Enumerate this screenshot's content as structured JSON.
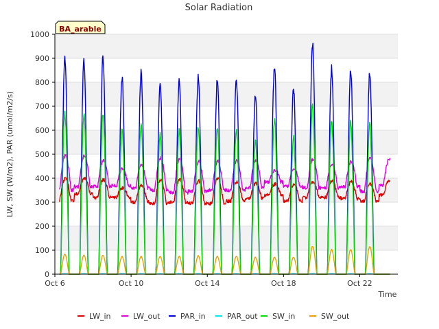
{
  "chart_data": {
    "type": "line",
    "title": "Solar Radiation",
    "xlabel": "Time",
    "ylabel": "LW, SW (W/m2), PAR (umol/m2/s)",
    "badge": "BA_arable",
    "ylim": [
      0,
      1000
    ],
    "yticks": [
      0,
      100,
      200,
      300,
      400,
      500,
      600,
      700,
      800,
      900,
      1000
    ],
    "xlim_days": [
      6,
      24
    ],
    "xticks": [
      {
        "day": 6,
        "label": "Oct 6"
      },
      {
        "day": 10,
        "label": "Oct 10"
      },
      {
        "day": 14,
        "label": "Oct 14"
      },
      {
        "day": 18,
        "label": "Oct 18"
      },
      {
        "day": 22,
        "label": "Oct 22"
      }
    ],
    "grid": true,
    "legend_position": "bottom",
    "days": [
      "Oct 6",
      "Oct 7",
      "Oct 8",
      "Oct 9",
      "Oct 10",
      "Oct 11",
      "Oct 12",
      "Oct 13",
      "Oct 14",
      "Oct 15",
      "Oct 16",
      "Oct 17",
      "Oct 18",
      "Oct 19",
      "Oct 20",
      "Oct 21",
      "Oct 22",
      "Oct 23"
    ],
    "series": [
      {
        "name": "LW_in",
        "color": "#dd0000",
        "kind": "longwave",
        "daily_min": [
          305,
          335,
          320,
          320,
          300,
          295,
          300,
          295,
          295,
          305,
          315,
          330,
          305,
          320,
          320,
          315,
          305,
          330
        ],
        "daily_max": [
          400,
          400,
          395,
          360,
          370,
          395,
          395,
          390,
          400,
          385,
          380,
          375,
          375,
          385,
          390,
          385,
          375,
          390
        ]
      },
      {
        "name": "LW_out",
        "color": "#dd00dd",
        "kind": "longwave",
        "daily_min": [
          350,
          365,
          365,
          370,
          360,
          350,
          340,
          345,
          350,
          350,
          360,
          385,
          365,
          360,
          360,
          365,
          345,
          370
        ],
        "daily_max": [
          495,
          495,
          475,
          440,
          455,
          485,
          480,
          470,
          470,
          475,
          475,
          435,
          440,
          480,
          460,
          470,
          485,
          480
        ]
      },
      {
        "name": "PAR_in",
        "color": "#0000dd",
        "kind": "solar",
        "daily_peak": [
          915,
          905,
          920,
          835,
          855,
          805,
          825,
          845,
          830,
          830,
          760,
          885,
          790,
          975,
          875,
          865,
          860,
          0
        ]
      },
      {
        "name": "PAR_out",
        "color": "#00e5ee",
        "kind": "solar",
        "daily_peak": [
          2,
          2,
          2,
          2,
          2,
          2,
          2,
          2,
          2,
          2,
          2,
          2,
          2,
          2,
          2,
          2,
          2,
          0
        ]
      },
      {
        "name": "SW_in",
        "color": "#00dd00",
        "kind": "solar",
        "daily_peak": [
          685,
          675,
          685,
          620,
          635,
          595,
          615,
          630,
          620,
          620,
          565,
          660,
          585,
          720,
          650,
          645,
          640,
          0
        ]
      },
      {
        "name": "SW_out",
        "color": "#eaa000",
        "kind": "solar",
        "daily_peak": [
          85,
          80,
          80,
          75,
          75,
          75,
          75,
          78,
          75,
          75,
          72,
          72,
          72,
          118,
          105,
          105,
          118,
          0
        ]
      }
    ]
  }
}
